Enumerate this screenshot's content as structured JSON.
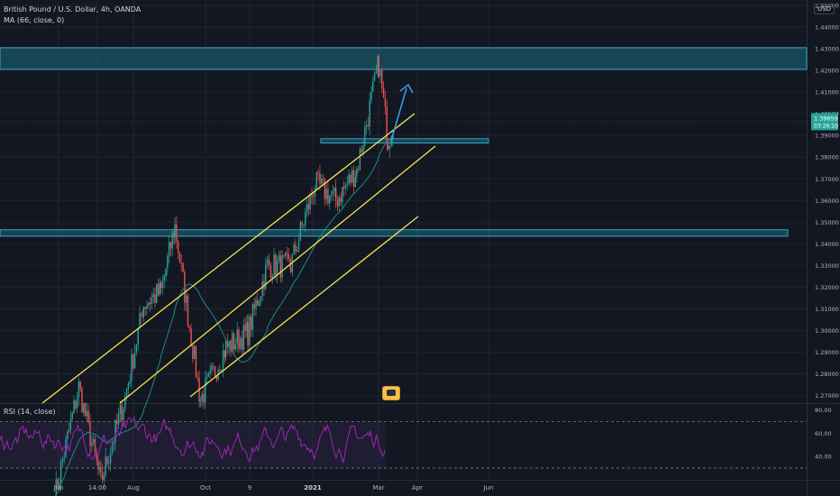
{
  "header": {
    "symbol_line": "British Pound / U.S. Dollar, 4h, OANDA",
    "ma_line": "MA (66, close, 0)"
  },
  "rsi": {
    "label": "RSI (14, close)",
    "levels": [
      "80.00",
      "60.00",
      "40.00"
    ],
    "upper_band": 70,
    "lower_band": 30
  },
  "currency_badge": "USD",
  "price_tag": {
    "price": "1.39659",
    "countdown": "03:26:10"
  },
  "colors": {
    "background": "#131722",
    "zone_fill": "#1e6b80",
    "zone_border": "#34a7c9",
    "channel": "#f5e54b",
    "arrow": "#3aa0e6",
    "rsi_line": "#9c27b0",
    "up_candle": "#26a69a",
    "down_candle": "#ef5350",
    "ma": "#1c8a8a",
    "price_tag": "#26a69a"
  },
  "chart_data": {
    "type": "candlestick",
    "title": "British Pound / U.S. Dollar, 4h, OANDA",
    "x_tick_labels": [
      "Jun",
      "14:00",
      "Aug",
      "Oct",
      "9",
      "2021",
      "Mar",
      "Apr",
      "Jun"
    ],
    "y_tick_labels": [
      "1.45000",
      "1.44000",
      "1.43000",
      "1.42000",
      "1.41000",
      "1.40000",
      "1.39000",
      "1.38000",
      "1.37000",
      "1.36000",
      "1.35000",
      "1.34000",
      "1.33000",
      "1.32000",
      "1.31000",
      "1.30000",
      "1.29000",
      "1.28000",
      "1.27000"
    ],
    "ylim": [
      1.2665,
      1.4525
    ],
    "zones": [
      {
        "name": "resistance-zone-top",
        "low": 1.4205,
        "high": 1.4305
      },
      {
        "name": "support-zone-middle",
        "low": 1.3865,
        "high": 1.3885
      },
      {
        "name": "support-zone-lower",
        "low": 1.3435,
        "high": 1.3465
      }
    ],
    "price_path": [
      {
        "x": "2020-05-20",
        "y": 1.223
      },
      {
        "x": "2020-06-10",
        "y": 1.274
      },
      {
        "x": "2020-06-29",
        "y": 1.23
      },
      {
        "x": "2020-07-20",
        "y": 1.269
      },
      {
        "x": "2020-08-05",
        "y": 1.312
      },
      {
        "x": "2020-08-20",
        "y": 1.318
      },
      {
        "x": "2020-09-01",
        "y": 1.348
      },
      {
        "x": "2020-09-23",
        "y": 1.268
      },
      {
        "x": "2020-10-15",
        "y": 1.292
      },
      {
        "x": "2020-11-03",
        "y": 1.299
      },
      {
        "x": "2020-11-20",
        "y": 1.33
      },
      {
        "x": "2020-12-10",
        "y": 1.33
      },
      {
        "x": "2020-12-31",
        "y": 1.368
      },
      {
        "x": "2021-01-18",
        "y": 1.36
      },
      {
        "x": "2021-02-05",
        "y": 1.374
      },
      {
        "x": "2021-02-24",
        "y": 1.423
      },
      {
        "x": "2021-03-04",
        "y": 1.388
      },
      {
        "x": "2021-03-09",
        "y": 1.3966
      }
    ],
    "rsi_ylim": [
      20,
      85
    ]
  }
}
